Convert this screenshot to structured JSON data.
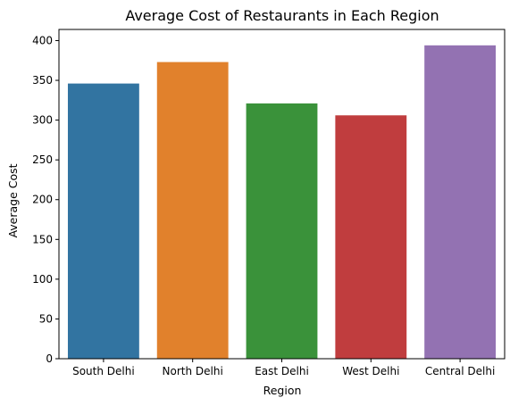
{
  "chart_data": {
    "type": "bar",
    "title": "Average Cost of Restaurants in Each Region",
    "xlabel": "Region",
    "ylabel": "Average Cost",
    "categories": [
      "South Delhi",
      "North Delhi",
      "East Delhi",
      "West Delhi",
      "Central Delhi"
    ],
    "values": [
      346,
      373,
      321,
      306,
      394
    ],
    "colors": [
      "#3274a1",
      "#e1812c",
      "#3a923a",
      "#c03d3e",
      "#9372b2"
    ],
    "ylim": [
      0,
      414
    ],
    "yticks": [
      0,
      50,
      100,
      150,
      200,
      250,
      300,
      350,
      400
    ],
    "grid": false,
    "legend": "none"
  }
}
